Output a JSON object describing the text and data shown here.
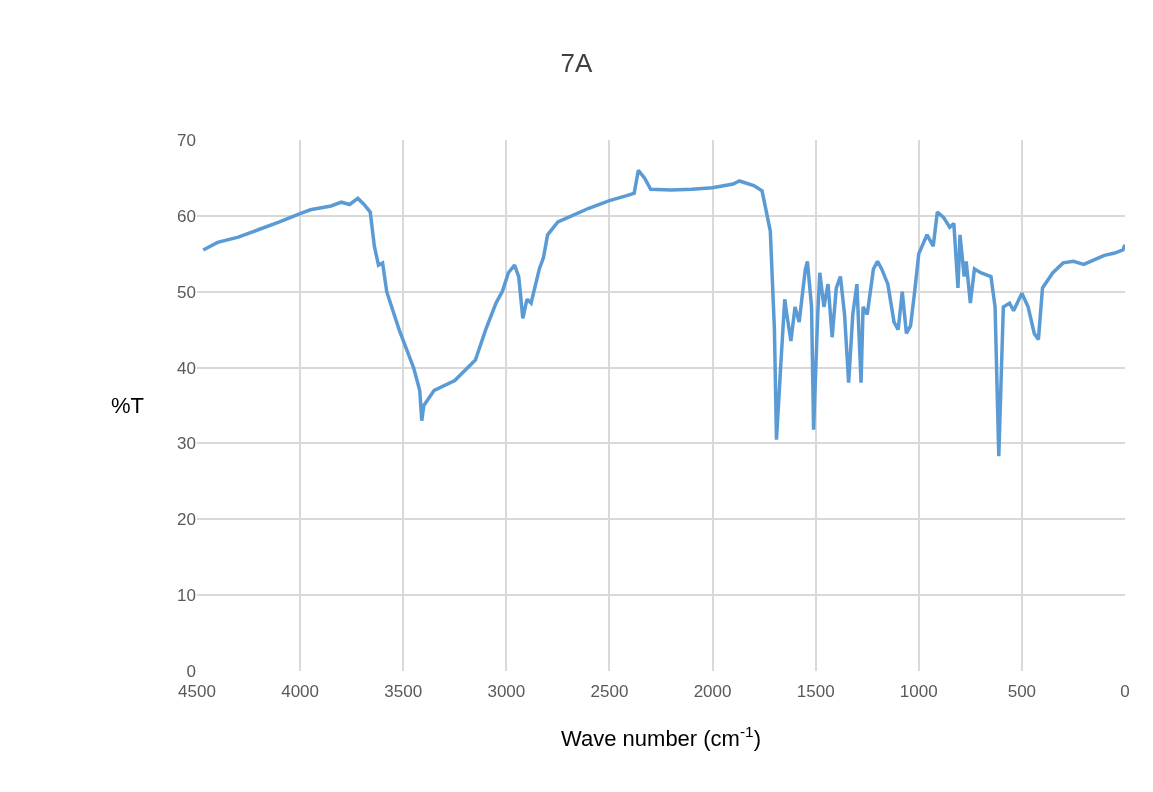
{
  "chart_data": {
    "type": "line",
    "title": "7A",
    "xlabel": "Wave number (cm$^{-1}$)",
    "ylabel": "%T",
    "xlim": [
      4500,
      0
    ],
    "xticks": [
      4500,
      4000,
      3500,
      3000,
      2500,
      2000,
      1500,
      1000,
      500,
      0
    ],
    "ylim": [
      0,
      70
    ],
    "yticks": [
      0,
      10,
      20,
      30,
      40,
      50,
      60,
      70
    ],
    "grid": true,
    "marker": "none",
    "line_style": "solid",
    "x": [
      4470,
      4400,
      4300,
      4200,
      4100,
      4000,
      3950,
      3850,
      3800,
      3760,
      3720,
      3690,
      3660,
      3640,
      3620,
      3600,
      3580,
      3520,
      3450,
      3420,
      3410,
      3400,
      3350,
      3250,
      3150,
      3100,
      3050,
      3020,
      2990,
      2960,
      2940,
      2920,
      2900,
      2880,
      2840,
      2820,
      2800,
      2750,
      2700,
      2600,
      2500,
      2400,
      2380,
      2360,
      2330,
      2300,
      2200,
      2100,
      2000,
      1900,
      1870,
      1800,
      1760,
      1720,
      1700,
      1690,
      1670,
      1650,
      1640,
      1620,
      1600,
      1580,
      1550,
      1540,
      1520,
      1510,
      1490,
      1480,
      1460,
      1440,
      1420,
      1400,
      1380,
      1360,
      1340,
      1320,
      1300,
      1280,
      1270,
      1250,
      1220,
      1200,
      1180,
      1150,
      1120,
      1100,
      1080,
      1060,
      1040,
      1020,
      1000,
      960,
      930,
      910,
      880,
      850,
      830,
      810,
      800,
      780,
      770,
      750,
      730,
      700,
      650,
      630,
      612,
      590,
      560,
      540,
      500,
      470,
      440,
      420,
      400,
      350,
      300,
      250,
      200,
      150,
      100,
      50,
      10,
      0
    ],
    "series": [
      {
        "color": "#5b9bd5",
        "values": [
          55.5,
          56.5,
          57.2,
          58.2,
          59.2,
          60.3,
          60.8,
          61.3,
          61.8,
          61.5,
          62.3,
          61.5,
          60.5,
          56,
          53.5,
          53.8,
          50,
          45,
          40,
          37,
          33,
          35,
          37,
          38.3,
          41,
          45,
          48.5,
          50,
          52.5,
          53.5,
          52,
          46.5,
          49,
          48.5,
          53,
          54.5,
          57.5,
          59.2,
          59.8,
          61,
          62,
          62.8,
          63,
          66,
          65,
          63.5,
          63.4,
          63.5,
          63.7,
          64.2,
          64.6,
          64,
          63.3,
          58,
          45,
          30.5,
          40,
          49,
          47,
          43.5,
          48,
          46,
          53,
          54,
          48,
          31.8,
          47,
          52.5,
          48,
          51,
          44,
          50.5,
          52,
          47,
          38,
          47,
          51,
          38,
          48,
          47,
          53,
          54,
          53,
          51,
          46,
          45,
          50,
          44.5,
          45.5,
          50,
          55,
          57.5,
          56,
          60.5,
          59.8,
          58.5,
          59,
          50.5,
          57.5,
          52,
          54,
          48.5,
          53,
          52.5,
          52,
          48,
          28.3,
          48,
          48.5,
          47.5,
          49.8,
          48,
          44.5,
          43.7,
          50.5,
          52.5,
          53.8,
          54,
          53.6,
          54.2,
          54.8,
          55.1,
          55.5,
          56.2
        ]
      }
    ]
  }
}
